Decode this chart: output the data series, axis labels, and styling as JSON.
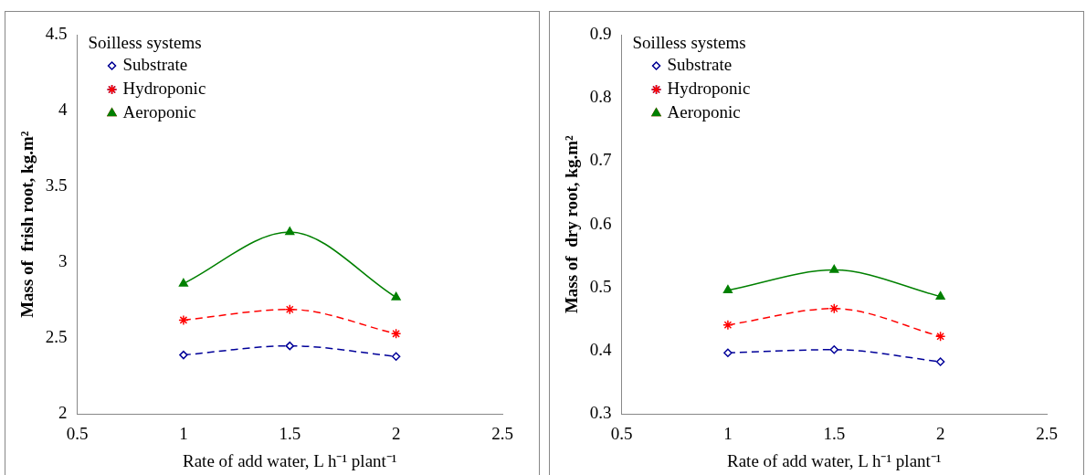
{
  "chart_data": [
    {
      "type": "line",
      "xlabel": "Rate of add water, L h⁻¹ plant⁻¹",
      "ylabel": "Mass of  frish root, kg.m²",
      "legend_title": "Soilless systems",
      "legend": "top left",
      "grid": false,
      "x": [
        1,
        1.5,
        2
      ],
      "xlim": [
        0.5,
        2.5
      ],
      "xticks": [
        0.5,
        1,
        1.5,
        2,
        2.5
      ],
      "ylim": [
        2,
        4.5
      ],
      "yticks": [
        2,
        2.5,
        3,
        3.5,
        4,
        4.5
      ],
      "series": [
        {
          "name": "Substrate",
          "color": "#000099",
          "marker": "diamond",
          "line_style": "dashed",
          "values": [
            2.39,
            2.45,
            2.38
          ]
        },
        {
          "name": "Hydroponic",
          "color": "#ff0000",
          "marker": "cross",
          "line_style": "dashed",
          "values": [
            2.62,
            2.69,
            2.53
          ]
        },
        {
          "name": "Aeroponic",
          "color": "#008000",
          "marker": "triangle",
          "line_style": "solid",
          "values": [
            2.86,
            3.2,
            2.77
          ]
        }
      ]
    },
    {
      "type": "line",
      "xlabel": "Rate of add water, L h⁻¹ plant⁻¹",
      "ylabel": "Mass of  dry root, kg.m²",
      "legend_title": "Soilless systems",
      "legend": "top left",
      "grid": false,
      "x": [
        1,
        1.5,
        2
      ],
      "xlim": [
        0.5,
        2.5
      ],
      "xticks": [
        0.5,
        1,
        1.5,
        2,
        2.5
      ],
      "ylim": [
        0.3,
        0.9
      ],
      "yticks": [
        0.3,
        0.4,
        0.5,
        0.6,
        0.7,
        0.8,
        0.9
      ],
      "series": [
        {
          "name": "Substrate",
          "color": "#000099",
          "marker": "diamond",
          "line_style": "dashed",
          "values": [
            0.397,
            0.402,
            0.383
          ]
        },
        {
          "name": "Hydroponic",
          "color": "#ff0000",
          "marker": "cross",
          "line_style": "dashed",
          "values": [
            0.441,
            0.467,
            0.423
          ]
        },
        {
          "name": "Aeroponic",
          "color": "#008000",
          "marker": "triangle",
          "line_style": "solid",
          "values": [
            0.496,
            0.528,
            0.486
          ]
        }
      ]
    }
  ]
}
